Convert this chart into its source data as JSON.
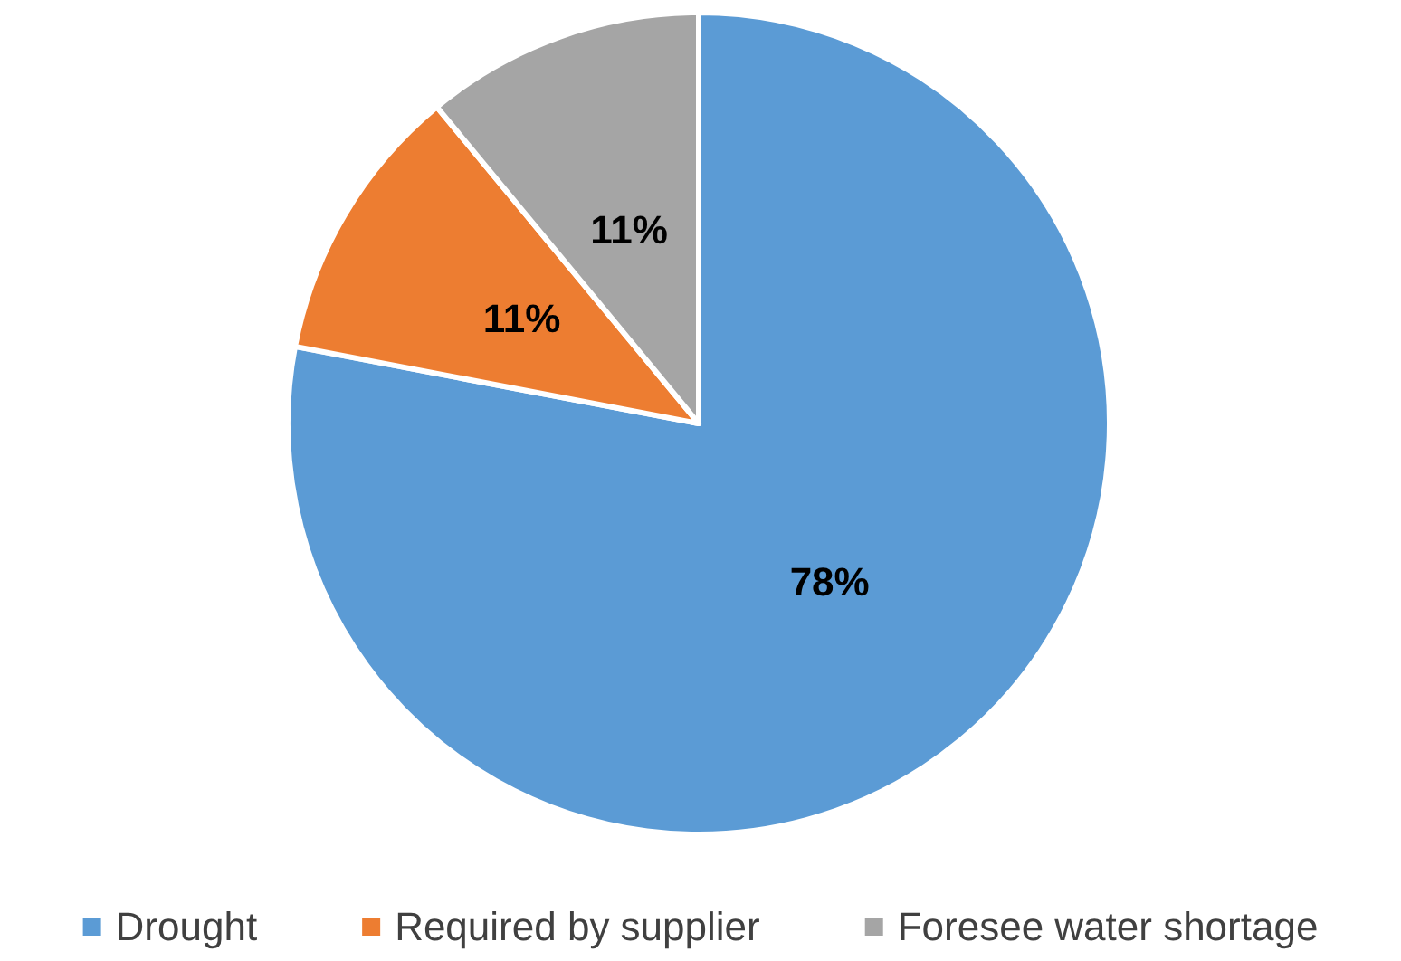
{
  "chart_data": {
    "type": "pie",
    "categories": [
      "Drought",
      "Required by supplier",
      "Foresee water shortage"
    ],
    "values": [
      78,
      11,
      11
    ],
    "colors": [
      "#5b9bd5",
      "#ed7d31",
      "#a5a5a5"
    ],
    "value_labels": [
      "78%",
      "11%",
      "11%"
    ],
    "legend": "bottom"
  }
}
